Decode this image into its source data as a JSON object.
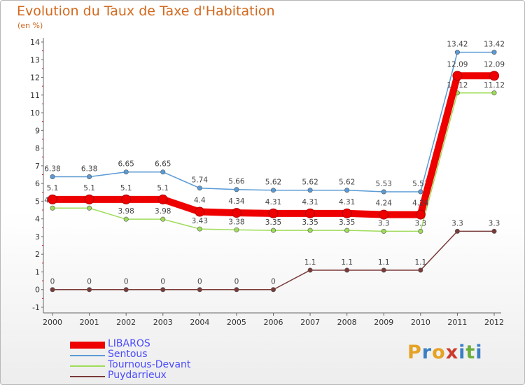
{
  "header": {
    "title": "Evolution du Taux de Taxe d'Habitation",
    "subtitle": "(en %)"
  },
  "chart_data": {
    "type": "line",
    "title": "Evolution du Taux de Taxe d'Habitation",
    "ylabel": "(en %)",
    "xlabel": "",
    "x": [
      "2000",
      "2001",
      "2002",
      "2003",
      "2004",
      "2005",
      "2006",
      "2007",
      "2008",
      "2009",
      "2010",
      "2011",
      "2012"
    ],
    "ylim": [
      -1,
      14
    ],
    "yticks": [
      "-1",
      "0",
      "1",
      "2",
      "3",
      "4",
      "5",
      "6",
      "7",
      "8",
      "9",
      "10",
      "11",
      "12",
      "13",
      "14"
    ],
    "grid": false,
    "legend_position": "bottom-left",
    "series": [
      {
        "name": "Sentous",
        "color": "#5b9bd5",
        "values": [
          6.38,
          6.38,
          6.65,
          6.65,
          5.74,
          5.66,
          5.62,
          5.62,
          5.62,
          5.53,
          5.53,
          13.42,
          13.42
        ],
        "labels": [
          "6.38",
          "6.38",
          "6.65",
          "6.65",
          "5.74",
          "5.66",
          "5.62",
          "5.62",
          "5.62",
          "5.53",
          "5.53",
          "13.42",
          "13.42"
        ]
      },
      {
        "name": "Tournous-Devant",
        "color": "#9fdc5a",
        "values": [
          4.61,
          4.61,
          3.98,
          3.98,
          3.43,
          3.38,
          3.35,
          3.35,
          3.35,
          3.3,
          3.3,
          11.12,
          11.12
        ],
        "labels": [
          "4.61",
          "4.61",
          "3.98",
          "3.98",
          "3.43",
          "3.38",
          "3.35",
          "3.35",
          "3.35",
          "3.3",
          "3.3",
          "11.12",
          "11.12"
        ]
      },
      {
        "name": "Puydarrieux",
        "color": "#7a3b3b",
        "values": [
          0,
          0,
          0,
          0,
          0,
          0,
          0,
          1.1,
          1.1,
          1.1,
          1.1,
          3.3,
          3.3
        ],
        "labels": [
          "0",
          "0",
          "0",
          "0",
          "0",
          "0",
          "0",
          "1.1",
          "1.1",
          "1.1",
          "1.1",
          "3.3",
          "3.3"
        ]
      },
      {
        "name": "LIBAROS",
        "color": "#ee0000",
        "values": [
          5.1,
          5.1,
          5.1,
          5.1,
          4.4,
          4.34,
          4.31,
          4.31,
          4.31,
          4.24,
          4.24,
          12.09,
          12.09
        ],
        "labels": [
          "5.1",
          "5.1",
          "5.1",
          "5.1",
          "4.4",
          "4.34",
          "4.31",
          "4.31",
          "4.31",
          "4.24",
          "4.24",
          "12.09",
          "12.09"
        ]
      }
    ]
  },
  "legend": {
    "items": [
      {
        "label": "LIBAROS",
        "color": "#ee0000"
      },
      {
        "label": "Sentous",
        "color": "#5b9bd5"
      },
      {
        "label": "Tournous-Devant",
        "color": "#9fdc5a"
      },
      {
        "label": "Puydarrieux",
        "color": "#7a3b3b"
      }
    ]
  },
  "logo": {
    "text": "Proxiti",
    "colors": [
      "#e5a224",
      "#3a7fc4",
      "#e5a224",
      "#cc3b2e",
      "#3a7fc4",
      "#6aae3c",
      "#3a7fc4"
    ]
  }
}
